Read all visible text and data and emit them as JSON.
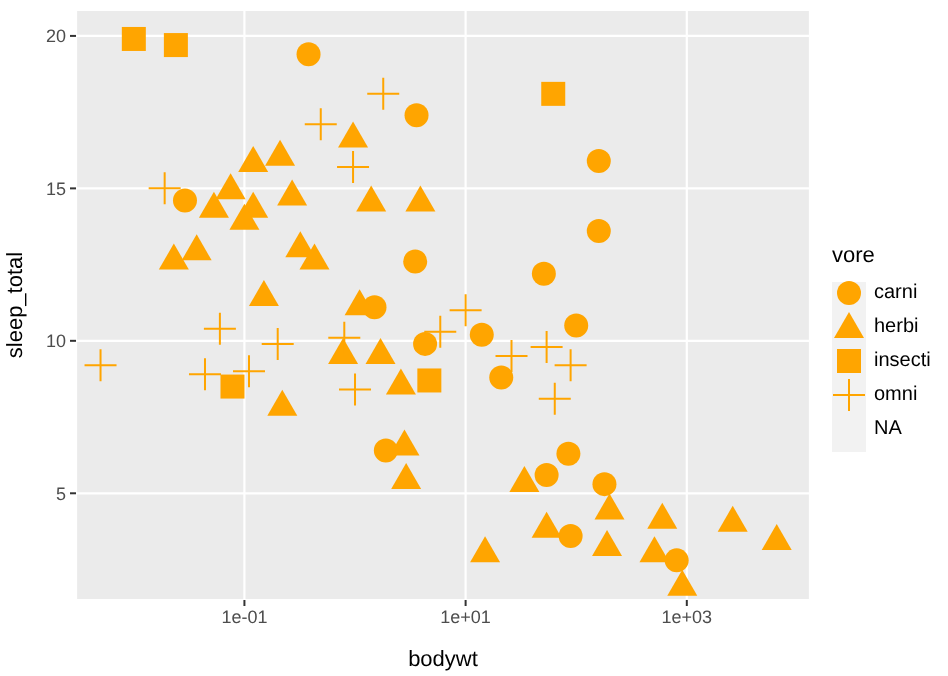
{
  "chart_data": {
    "type": "scatter",
    "xlabel": "bodywt",
    "ylabel": "sleep_total",
    "legend_title": "vore",
    "log": "x",
    "grid": true,
    "legend": "right",
    "xlim": [
      0.003,
      13000
    ],
    "xticks": [
      {
        "value": 0.1,
        "label": "1e-01"
      },
      {
        "value": 10,
        "label": "1e+01"
      },
      {
        "value": 1000,
        "label": "1e+03"
      }
    ],
    "ylim": [
      1.5,
      20.85
    ],
    "yticks": [
      5,
      10,
      15,
      20
    ],
    "series": [
      {
        "name": "carni",
        "color": "#ffa500",
        "marker": "circle",
        "x": [
          0.38,
          0.029,
          3.6,
          3.5,
          1.5,
          160,
          160,
          51,
          100,
          4.3,
          14,
          21,
          85,
          54,
          180,
          89,
          810,
          1.9
        ],
        "values": [
          19.4,
          14.6,
          17.4,
          12.6,
          11.1,
          15.9,
          13.6,
          12.2,
          10.5,
          9.9,
          10.2,
          8.8,
          6.3,
          5.6,
          5.3,
          3.6,
          2.8,
          6.4
        ]
      },
      {
        "name": "herbi",
        "color": "#ffa500",
        "marker": "triangle",
        "x": [
          0.12,
          0.21,
          0.96,
          0.075,
          0.053,
          0.12,
          0.1,
          0.27,
          1.4,
          3.9,
          0.023,
          0.037,
          0.32,
          0.43,
          0.15,
          1.1,
          0.78,
          1.7,
          2.6,
          0.22,
          2.8,
          2.9,
          34,
          54,
          15,
          200,
          190,
          600,
          510,
          910,
          2600,
          6500
        ],
        "values": [
          15.9,
          16.1,
          16.7,
          15.0,
          14.4,
          14.4,
          14.0,
          14.8,
          14.6,
          14.6,
          12.7,
          13.0,
          13.1,
          12.7,
          11.5,
          11.2,
          9.6,
          9.6,
          8.6,
          7.9,
          6.6,
          5.5,
          5.4,
          3.9,
          3.1,
          4.5,
          3.3,
          4.2,
          3.1,
          2.0,
          4.1,
          3.5
        ]
      },
      {
        "name": "insecti",
        "color": "#ffa500",
        "marker": "square",
        "x": [
          0.01,
          0.024,
          62,
          0.078,
          4.7
        ],
        "values": [
          19.9,
          19.7,
          18.1,
          8.5,
          8.7
        ]
      },
      {
        "name": "omni",
        "color": "#ffa500",
        "marker": "cross",
        "x": [
          1.8,
          0.49,
          0.96,
          0.019,
          0.005,
          0.06,
          0.044,
          0.11,
          0.2,
          0.8,
          1.0,
          5.9,
          10,
          26,
          54,
          89,
          64
        ],
        "values": [
          18.1,
          17.1,
          15.7,
          15.0,
          9.2,
          10.4,
          8.9,
          9.0,
          9.9,
          10.1,
          8.4,
          10.3,
          11.0,
          9.5,
          9.8,
          9.2,
          8.1
        ]
      },
      {
        "name": "NA",
        "marker": "none"
      }
    ]
  }
}
